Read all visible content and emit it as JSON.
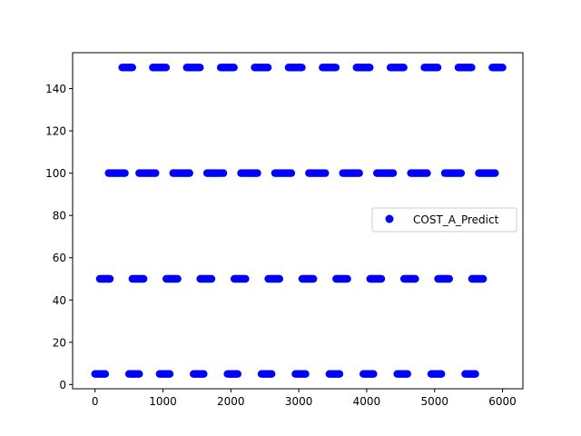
{
  "chart_data": {
    "type": "scatter",
    "xlim": [
      -330,
      6300
    ],
    "ylim": [
      -2,
      157
    ],
    "x_ticks": [
      0,
      1000,
      2000,
      3000,
      4000,
      5000,
      6000
    ],
    "x_tick_labels": [
      "0",
      "1000",
      "2000",
      "3000",
      "4000",
      "5000",
      "6000"
    ],
    "y_ticks": [
      0,
      20,
      40,
      60,
      80,
      100,
      120,
      140
    ],
    "y_tick_labels": [
      "0",
      "20",
      "40",
      "60",
      "80",
      "100",
      "120",
      "140"
    ],
    "grid": false,
    "legend_position": "center-right",
    "marker_color": "#0000ff",
    "series": [
      {
        "name": "COST_A_Predict",
        "levels": [
          {
            "y": 5,
            "clusters": [
              [
                0,
                150
              ],
              [
                500,
                650
              ],
              [
                950,
                1100
              ],
              [
                1450,
                1600
              ],
              [
                1950,
                2100
              ],
              [
                2450,
                2600
              ],
              [
                2950,
                3100
              ],
              [
                3450,
                3600
              ],
              [
                3950,
                4100
              ],
              [
                4450,
                4600
              ],
              [
                4950,
                5100
              ],
              [
                5450,
                5600
              ]
            ]
          },
          {
            "y": 50,
            "clusters": [
              [
                70,
                220
              ],
              [
                550,
                720
              ],
              [
                1050,
                1220
              ],
              [
                1550,
                1720
              ],
              [
                2050,
                2220
              ],
              [
                2550,
                2720
              ],
              [
                3050,
                3220
              ],
              [
                3550,
                3720
              ],
              [
                4050,
                4220
              ],
              [
                4550,
                4720
              ],
              [
                5050,
                5220
              ],
              [
                5550,
                5720
              ]
            ]
          },
          {
            "y": 100,
            "clusters": [
              [
                200,
                450
              ],
              [
                650,
                900
              ],
              [
                1150,
                1400
              ],
              [
                1650,
                1900
              ],
              [
                2150,
                2400
              ],
              [
                2650,
                2900
              ],
              [
                3150,
                3400
              ],
              [
                3650,
                3900
              ],
              [
                4150,
                4400
              ],
              [
                4650,
                4900
              ],
              [
                5150,
                5400
              ],
              [
                5650,
                5900
              ]
            ]
          },
          {
            "y": 150,
            "clusters": [
              [
                400,
                550
              ],
              [
                850,
                1050
              ],
              [
                1350,
                1550
              ],
              [
                1850,
                2050
              ],
              [
                2350,
                2550
              ],
              [
                2850,
                3050
              ],
              [
                3350,
                3550
              ],
              [
                3850,
                4050
              ],
              [
                4350,
                4550
              ],
              [
                4850,
                5050
              ],
              [
                5350,
                5550
              ],
              [
                5850,
                6000
              ]
            ]
          }
        ]
      }
    ]
  }
}
